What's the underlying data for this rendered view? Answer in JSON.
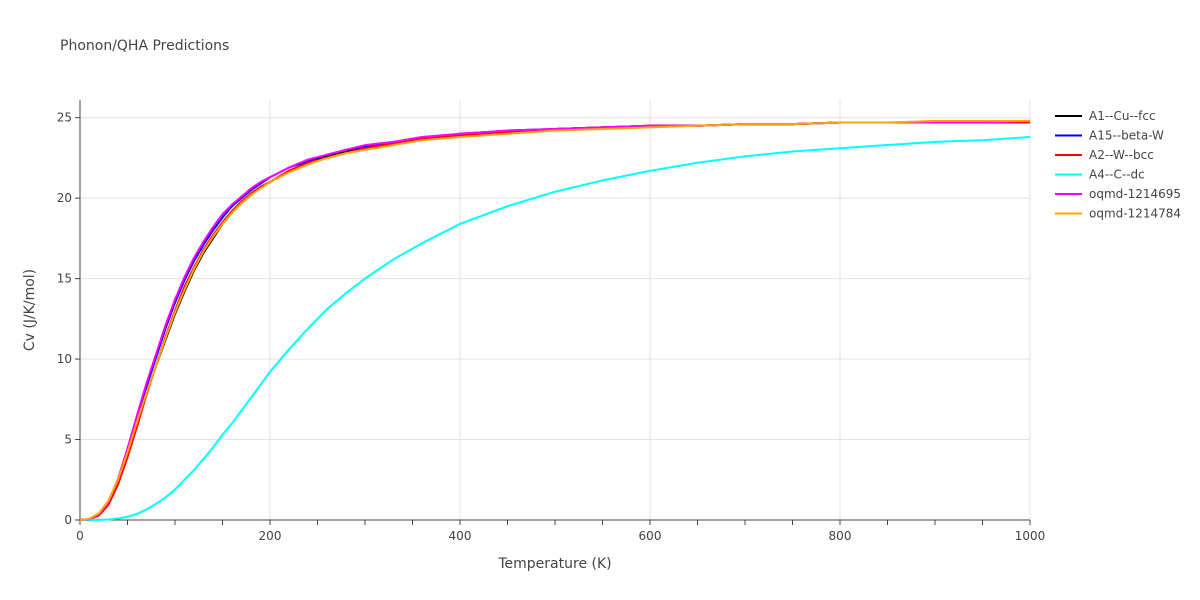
{
  "chart_data": {
    "type": "line",
    "title": "Phonon/QHA Predictions",
    "xlabel": "Temperature (K)",
    "ylabel": "Cv (J/K/mol)",
    "xlim": [
      0,
      1000
    ],
    "ylim": [
      0,
      26.1
    ],
    "x_ticks": [
      0,
      200,
      400,
      600,
      800,
      1000
    ],
    "y_ticks": [
      0,
      5,
      10,
      15,
      20,
      25
    ],
    "grid": true,
    "legend_position": "right",
    "x": [
      0,
      10,
      20,
      30,
      40,
      50,
      60,
      70,
      80,
      90,
      100,
      110,
      120,
      130,
      140,
      150,
      160,
      170,
      180,
      190,
      200,
      220,
      240,
      260,
      280,
      300,
      330,
      360,
      400,
      450,
      500,
      550,
      600,
      650,
      700,
      750,
      800,
      850,
      900,
      950,
      1000
    ],
    "series": [
      {
        "name": "A1--Cu--fcc",
        "color": "#000000",
        "values": [
          0,
          0.06,
          0.38,
          1.18,
          2.5,
          4.22,
          6.09,
          7.92,
          9.58,
          11.2,
          12.8,
          14.2,
          15.5,
          16.6,
          17.5,
          18.4,
          19.1,
          19.7,
          20.2,
          20.7,
          21.0,
          21.7,
          22.2,
          22.6,
          22.9,
          23.1,
          23.4,
          23.7,
          23.9,
          24.1,
          24.3,
          24.4,
          24.5,
          24.5,
          24.6,
          24.6,
          24.7,
          24.7,
          24.7,
          24.7,
          24.7
        ]
      },
      {
        "name": "A15--beta-W",
        "color": "#0000ff",
        "values": [
          0,
          0.05,
          0.33,
          1.05,
          2.4,
          4.3,
          6.3,
          8.3,
          10.1,
          11.9,
          13.5,
          14.9,
          16.1,
          17.1,
          18.0,
          18.8,
          19.5,
          20.0,
          20.5,
          20.9,
          21.3,
          21.9,
          22.3,
          22.7,
          23.0,
          23.2,
          23.5,
          23.7,
          24.0,
          24.2,
          24.3,
          24.4,
          24.5,
          24.5,
          24.6,
          24.6,
          24.7,
          24.7,
          24.7,
          24.7,
          24.7
        ]
      },
      {
        "name": "A2--W--bcc",
        "color": "#ff0000",
        "values": [
          0,
          0.04,
          0.28,
          0.95,
          2.2,
          3.9,
          5.8,
          7.8,
          9.6,
          11.4,
          13.0,
          14.5,
          15.7,
          16.8,
          17.7,
          18.5,
          19.2,
          19.8,
          20.3,
          20.7,
          21.0,
          21.7,
          22.2,
          22.5,
          22.8,
          23.1,
          23.4,
          23.7,
          23.9,
          24.1,
          24.3,
          24.4,
          24.5,
          24.5,
          24.6,
          24.6,
          24.7,
          24.7,
          24.7,
          24.7,
          24.7
        ]
      },
      {
        "name": "A4--C--dc",
        "color": "#00ffff",
        "values": [
          0,
          0.0,
          0.01,
          0.03,
          0.09,
          0.2,
          0.38,
          0.65,
          1.0,
          1.4,
          1.9,
          2.5,
          3.1,
          3.8,
          4.5,
          5.3,
          6.0,
          6.8,
          7.6,
          8.4,
          9.2,
          10.6,
          11.9,
          13.1,
          14.1,
          15.0,
          16.2,
          17.2,
          18.4,
          19.5,
          20.4,
          21.1,
          21.7,
          22.2,
          22.6,
          22.9,
          23.1,
          23.3,
          23.5,
          23.6,
          23.8
        ]
      },
      {
        "name": "oqmd-1214695",
        "color": "#ff00ff",
        "values": [
          0,
          0.05,
          0.35,
          1.12,
          2.55,
          4.45,
          6.5,
          8.5,
          10.3,
          12.1,
          13.7,
          15.1,
          16.3,
          17.3,
          18.2,
          19.0,
          19.6,
          20.1,
          20.6,
          21.0,
          21.3,
          21.9,
          22.4,
          22.7,
          23.0,
          23.3,
          23.5,
          23.8,
          24.0,
          24.2,
          24.3,
          24.4,
          24.5,
          24.5,
          24.6,
          24.6,
          24.7,
          24.7,
          24.7,
          24.7,
          24.8
        ]
      },
      {
        "name": "oqmd-1214784",
        "color": "#ffa500",
        "values": [
          0,
          0.07,
          0.42,
          1.2,
          2.5,
          4.2,
          6.1,
          7.9,
          9.6,
          11.3,
          12.9,
          14.3,
          15.6,
          16.7,
          17.6,
          18.4,
          19.1,
          19.7,
          20.2,
          20.6,
          21.0,
          21.6,
          22.1,
          22.5,
          22.8,
          23.0,
          23.3,
          23.6,
          23.8,
          24.0,
          24.2,
          24.3,
          24.4,
          24.5,
          24.6,
          24.6,
          24.7,
          24.7,
          24.8,
          24.8,
          24.8
        ]
      }
    ]
  }
}
